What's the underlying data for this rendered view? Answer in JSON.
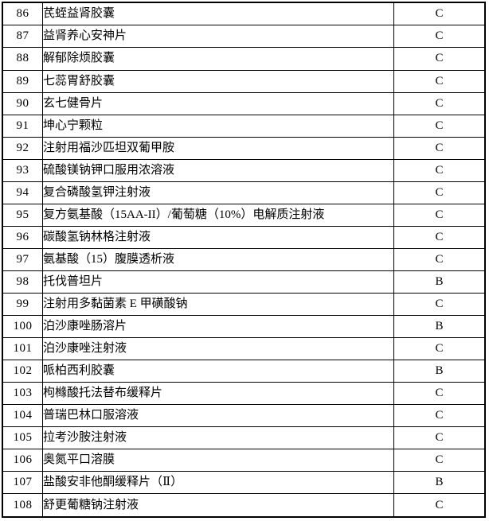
{
  "colors": {
    "border": "#000000",
    "text": "#000000",
    "background": "#ffffff"
  },
  "table": {
    "columns": [
      "no",
      "name",
      "category"
    ],
    "rows": [
      {
        "no": "86",
        "name": "芪蛭益肾胶囊",
        "category": "C"
      },
      {
        "no": "87",
        "name": "益肾养心安神片",
        "category": "C"
      },
      {
        "no": "88",
        "name": "解郁除烦胶囊",
        "category": "C"
      },
      {
        "no": "89",
        "name": "七蕊胃舒胶囊",
        "category": "C"
      },
      {
        "no": "90",
        "name": "玄七健骨片",
        "category": "C"
      },
      {
        "no": "91",
        "name": "坤心宁颗粒",
        "category": "C"
      },
      {
        "no": "92",
        "name": "注射用福沙匹坦双葡甲胺",
        "category": "C"
      },
      {
        "no": "93",
        "name": "硫酸镁钠钾口服用浓溶液",
        "category": "C"
      },
      {
        "no": "94",
        "name": "复合磷酸氢钾注射液",
        "category": "C"
      },
      {
        "no": "95",
        "name": "复方氨基酸（15AA-II）/葡萄糖（10%）电解质注射液",
        "category": "C"
      },
      {
        "no": "96",
        "name": "碳酸氢钠林格注射液",
        "category": "C"
      },
      {
        "no": "97",
        "name": "氨基酸（15）腹膜透析液",
        "category": "C"
      },
      {
        "no": "98",
        "name": "托伐普坦片",
        "category": "B"
      },
      {
        "no": "99",
        "name": "注射用多黏菌素 E 甲磺酸钠",
        "category": "C"
      },
      {
        "no": "100",
        "name": "泊沙康唑肠溶片",
        "category": "B"
      },
      {
        "no": "101",
        "name": "泊沙康唑注射液",
        "category": "C"
      },
      {
        "no": "102",
        "name": "哌柏西利胶囊",
        "category": "B"
      },
      {
        "no": "103",
        "name": "枸橼酸托法替布缓释片",
        "category": "C"
      },
      {
        "no": "104",
        "name": "普瑞巴林口服溶液",
        "category": "C"
      },
      {
        "no": "105",
        "name": "拉考沙胺注射液",
        "category": "C"
      },
      {
        "no": "106",
        "name": "奥氮平口溶膜",
        "category": "C"
      },
      {
        "no": "107",
        "name": "盐酸安非他酮缓释片（Ⅱ）",
        "category": "B"
      },
      {
        "no": "108",
        "name": "舒更葡糖钠注射液",
        "category": "C"
      }
    ]
  }
}
